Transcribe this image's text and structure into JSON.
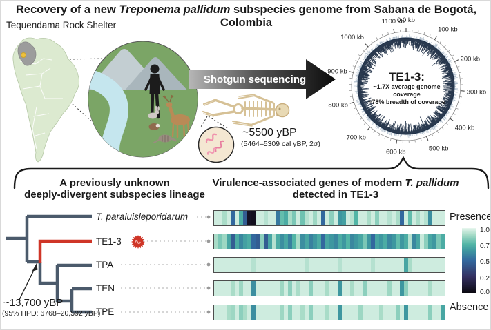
{
  "title": {
    "pre": "Recovery of a new ",
    "italic": "Treponema pallidum",
    "post": " subspecies genome from Sabana de Bogotá, Colombia"
  },
  "site_label": "Tequendama Rock Shelter",
  "sequencing_arrow_label": "Shotgun sequencing",
  "specimen": {
    "age": "~5500 yBP",
    "calibrated": "(5464–5309 cal yBP, 2σ)"
  },
  "genome_plot": {
    "sample_name": "TE1-3:",
    "stat_line1": "~1.7X average genome coverage",
    "stat_line2": "~78% breadth of coverage"
  },
  "phylogeny": {
    "heading_line1": "A previously unknown",
    "heading_line2": "deeply-divergent subspecies lineage",
    "taxa": [
      {
        "label": "T. paraluisleporidarum",
        "italic": true
      },
      {
        "label": "TE1-3",
        "highlight": true
      },
      {
        "label": "TPA"
      },
      {
        "label": "TEN"
      },
      {
        "label": "TPE"
      }
    ],
    "divergence_age": "~13,700 yBP",
    "divergence_hpd": "(95% HPD: 6768–20,592 yBP)",
    "branch_color": "#4b5a6b",
    "highlight_color": "#cf3527"
  },
  "heatmap_panel": {
    "heading_pre": "Virulence-associated genes of modern ",
    "heading_italic": "T. pallidum",
    "heading_line2": "detected in TE1-3",
    "legend": {
      "top_label": "Presence",
      "bottom_label": "Absence",
      "ticks": [
        "1.00",
        "0.75",
        "0.50",
        "0.25",
        "0.00"
      ]
    }
  },
  "chart_data": [
    {
      "type": "heatmap",
      "title": "Virulence-associated genes of modern T. pallidum detected in TE1-3",
      "rows": [
        "T. paraluisleporidarum",
        "TE1-3",
        "TPA",
        "TEN",
        "TPE"
      ],
      "n_columns": 56,
      "scale": {
        "min": 0,
        "max": 1,
        "tick_values": [
          1.0,
          0.75,
          0.5,
          0.25,
          0.0
        ],
        "top_label": "Presence",
        "bottom_label": "Absence"
      },
      "colormap_stops": [
        [
          0,
          "#0b0911"
        ],
        [
          0.25,
          "#343061"
        ],
        [
          0.5,
          "#33689e"
        ],
        [
          0.65,
          "#3e97a0"
        ],
        [
          0.75,
          "#52b5a6"
        ],
        [
          0.9,
          "#a9dcc8"
        ],
        [
          1,
          "#e7f6ee"
        ]
      ],
      "series": [
        {
          "name": "T. paraluisleporidarum",
          "values": [
            0.96,
            0.96,
            0.9,
            0.96,
            0.5,
            0.96,
            0.72,
            0.45,
            0.06,
            0.04,
            0.96,
            0.96,
            0.92,
            0.96,
            0.96,
            0.55,
            0.78,
            0.72,
            0.9,
            0.82,
            0.96,
            0.8,
            0.92,
            0.96,
            0.88,
            0.96,
            0.5,
            0.96,
            0.85,
            0.96,
            0.65,
            0.68,
            0.96,
            0.92,
            0.75,
            0.96,
            0.96,
            0.9,
            0.96,
            0.85,
            0.96,
            0.96,
            0.92,
            0.96,
            0.9,
            0.5,
            0.96,
            0.78,
            0.96,
            0.9,
            0.96,
            0.92,
            0.62,
            0.96,
            0.96,
            0.96
          ]
        },
        {
          "name": "TE1-3",
          "values": [
            0.9,
            0.82,
            0.88,
            0.7,
            0.45,
            0.72,
            0.6,
            0.68,
            0.72,
            0.5,
            0.45,
            0.85,
            0.45,
            0.7,
            0.92,
            0.72,
            0.62,
            0.7,
            0.58,
            0.75,
            0.9,
            0.62,
            0.7,
            0.58,
            0.65,
            0.72,
            0.5,
            0.7,
            0.65,
            0.6,
            0.72,
            0.65,
            0.75,
            0.6,
            0.65,
            0.7,
            0.82,
            0.65,
            0.5,
            0.7,
            0.65,
            0.72,
            0.6,
            0.65,
            0.78,
            0.65,
            0.72,
            0.92,
            0.6,
            0.7,
            0.95,
            0.85,
            0.7,
            0.65,
            0.82,
            0.72
          ]
        },
        {
          "name": "TPA",
          "values": [
            0.96,
            0.96,
            0.96,
            0.96,
            0.96,
            0.96,
            0.96,
            0.96,
            0.96,
            0.92,
            0.96,
            0.96,
            0.96,
            0.96,
            0.96,
            0.96,
            0.96,
            0.96,
            0.96,
            0.96,
            0.96,
            0.96,
            0.92,
            0.96,
            0.96,
            0.96,
            0.96,
            0.96,
            0.96,
            0.96,
            0.92,
            0.96,
            0.96,
            0.96,
            0.96,
            0.96,
            0.96,
            0.96,
            0.92,
            0.96,
            0.96,
            0.96,
            0.96,
            0.96,
            0.96,
            0.96,
            0.7,
            0.9,
            0.96,
            0.96,
            0.96,
            0.96,
            0.96,
            0.96,
            0.96,
            0.96
          ]
        },
        {
          "name": "TEN",
          "values": [
            0.96,
            0.96,
            0.96,
            0.96,
            0.9,
            0.96,
            0.88,
            0.96,
            0.96,
            0.62,
            0.96,
            0.96,
            0.96,
            0.96,
            0.96,
            0.96,
            0.88,
            0.96,
            0.85,
            0.96,
            0.9,
            0.96,
            0.96,
            0.85,
            0.96,
            0.96,
            0.96,
            0.9,
            0.96,
            0.96,
            0.65,
            0.96,
            0.96,
            0.9,
            0.96,
            0.96,
            0.85,
            0.96,
            0.96,
            0.96,
            0.96,
            0.96,
            0.88,
            0.96,
            0.96,
            0.65,
            0.85,
            0.96,
            0.96,
            0.96,
            0.96,
            0.96,
            0.9,
            0.96,
            0.96,
            0.96
          ]
        },
        {
          "name": "TPE",
          "values": [
            0.96,
            0.96,
            0.96,
            0.9,
            0.88,
            0.96,
            0.85,
            0.9,
            0.96,
            0.62,
            0.96,
            0.96,
            0.96,
            0.96,
            0.96,
            0.96,
            0.88,
            0.96,
            0.85,
            0.96,
            0.96,
            0.9,
            0.96,
            0.85,
            0.96,
            0.96,
            0.96,
            0.9,
            0.96,
            0.96,
            0.65,
            0.96,
            0.96,
            0.96,
            0.96,
            0.88,
            0.96,
            0.96,
            0.96,
            0.96,
            0.9,
            0.96,
            0.96,
            0.96,
            0.85,
            0.96,
            0.65,
            0.96,
            0.96,
            0.96,
            0.96,
            0.96,
            0.85,
            0.96,
            0.96,
            0.7
          ]
        }
      ]
    },
    {
      "type": "circular-coverage",
      "sample": "TE1-3",
      "average_coverage": "~1.7X",
      "breadth_of_coverage": "~78%",
      "length_kb": 1139,
      "ring_color": "#1a2b42",
      "ticks": [
        {
          "kb": 0,
          "label": "0.0 kb"
        },
        {
          "kb": 100,
          "label": "100 kb"
        },
        {
          "kb": 200,
          "label": "200 kb"
        },
        {
          "kb": 300,
          "label": "300 kb"
        },
        {
          "kb": 400,
          "label": "400 kb"
        },
        {
          "kb": 500,
          "label": "500 kb"
        },
        {
          "kb": 600,
          "label": "600 kb"
        },
        {
          "kb": 700,
          "label": "700 kb"
        },
        {
          "kb": 800,
          "label": "800 kb"
        },
        {
          "kb": 900,
          "label": "900 kb"
        },
        {
          "kb": 1000,
          "label": "1000 kb"
        },
        {
          "kb": 1100,
          "label": "1100 kb"
        }
      ]
    },
    {
      "type": "tree",
      "newick": "(T. paraluisleporidarum,(TE1-3,(TPA,(TEN,TPE))));",
      "annotation": {
        "node": "TE1-3 divergence",
        "age": "~13,700 yBP",
        "hpd": "(95% HPD: 6768–20,592 yBP)"
      }
    }
  ]
}
